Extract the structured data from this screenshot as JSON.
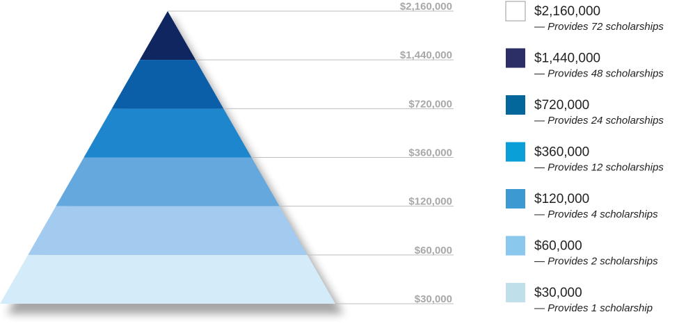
{
  "pyramid": {
    "levels": [
      {
        "label": "$2,160,000"
      },
      {
        "label": "$1,440,000",
        "color": "#0f2660"
      },
      {
        "label": "$720,000",
        "color": "#0a5fa8"
      },
      {
        "label": "$360,000",
        "color": "#1e86cc"
      },
      {
        "label": "$120,000",
        "color": "#64a8de"
      },
      {
        "label": "$60,000",
        "color": "#a3cbef"
      },
      {
        "label": "$30,000",
        "color": "#d4ebfa"
      }
    ]
  },
  "legend": [
    {
      "amount": "$2,160,000",
      "description": "— Provides 72 scholarships",
      "color": "#ffffff"
    },
    {
      "amount": "$1,440,000",
      "description": "— Provides 48 scholarships",
      "color": "#2c2f66"
    },
    {
      "amount": "$720,000",
      "description": "— Provides 24 scholarships",
      "color": "#04679c"
    },
    {
      "amount": "$360,000",
      "description": "— Provides 12 scholarships",
      "color": "#0a9fd6"
    },
    {
      "amount": "$120,000",
      "description": "— Provides 4 scholarships",
      "color": "#3d99d1"
    },
    {
      "amount": "$60,000",
      "description": "— Provides 2 scholarships",
      "color": "#8ac8ee"
    },
    {
      "amount": "$30,000",
      "description": "— Provides 1 scholarship",
      "color": "#bfe0ea"
    }
  ]
}
